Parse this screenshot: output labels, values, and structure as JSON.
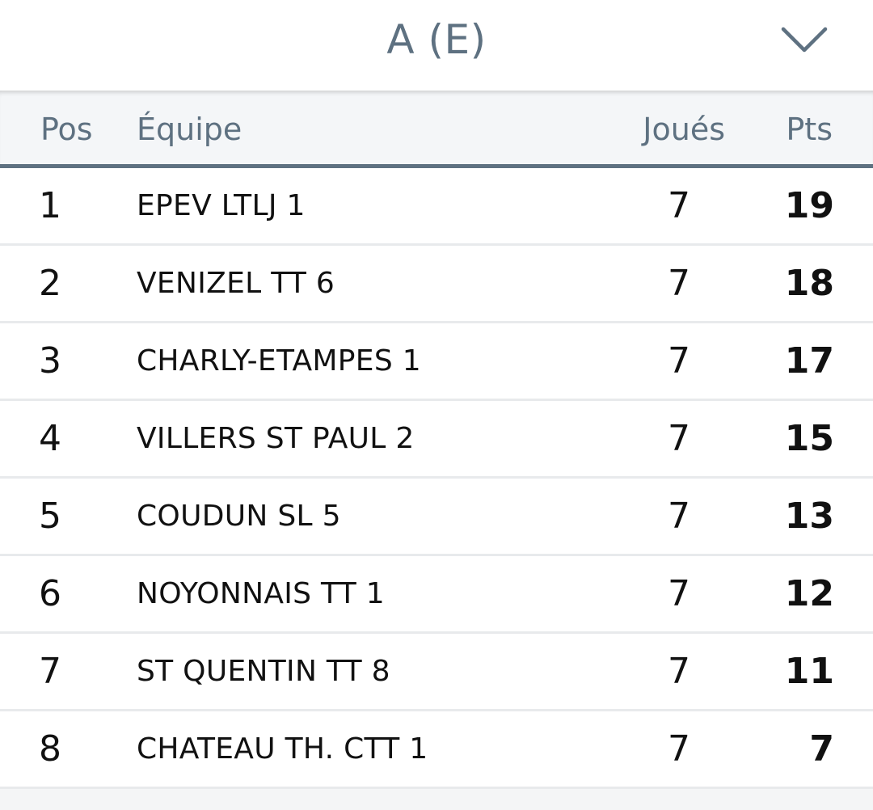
{
  "header": {
    "title": "A (E)",
    "dropdown_icon": "chevron-down-icon"
  },
  "columns": {
    "pos": "Pos",
    "team": "Équipe",
    "played": "Joués",
    "pts": "Pts"
  },
  "rows": [
    {
      "pos": "1",
      "team": "EPEV LTLJ 1",
      "played": "7",
      "pts": "19"
    },
    {
      "pos": "2",
      "team": "VENIZEL TT 6",
      "played": "7",
      "pts": "18"
    },
    {
      "pos": "3",
      "team": "CHARLY-ETAMPES 1",
      "played": "7",
      "pts": "17"
    },
    {
      "pos": "4",
      "team": "VILLERS ST PAUL 2",
      "played": "7",
      "pts": "15"
    },
    {
      "pos": "5",
      "team": "COUDUN SL 5",
      "played": "7",
      "pts": "13"
    },
    {
      "pos": "6",
      "team": "NOYONNAIS TT 1",
      "played": "7",
      "pts": "12"
    },
    {
      "pos": "7",
      "team": "ST QUENTIN TT 8",
      "played": "7",
      "pts": "11"
    },
    {
      "pos": "8",
      "team": "CHATEAU TH. CTT 1",
      "played": "7",
      "pts": "7"
    }
  ],
  "colors": {
    "accent": "#5e7181",
    "header_bg": "#f4f6f8",
    "divider": "#e8eaec",
    "text": "#111111"
  }
}
